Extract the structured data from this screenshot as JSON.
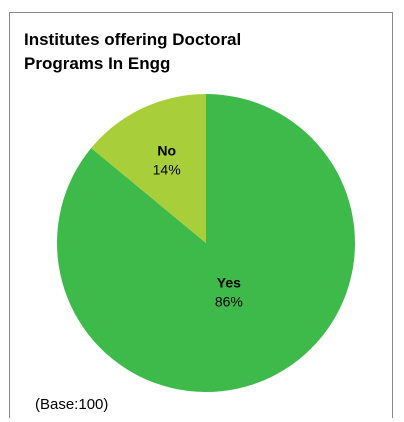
{
  "chart_data": {
    "type": "pie",
    "title_lines": [
      "Institutes offering Doctoral",
      "Programs In Engg"
    ],
    "categories": [
      "Yes",
      "No"
    ],
    "values": [
      86,
      14
    ],
    "value_labels": [
      "86%",
      "14%"
    ],
    "colors": [
      "#3dba4a",
      "#a8cf3a"
    ],
    "note": "(Base:100)"
  }
}
